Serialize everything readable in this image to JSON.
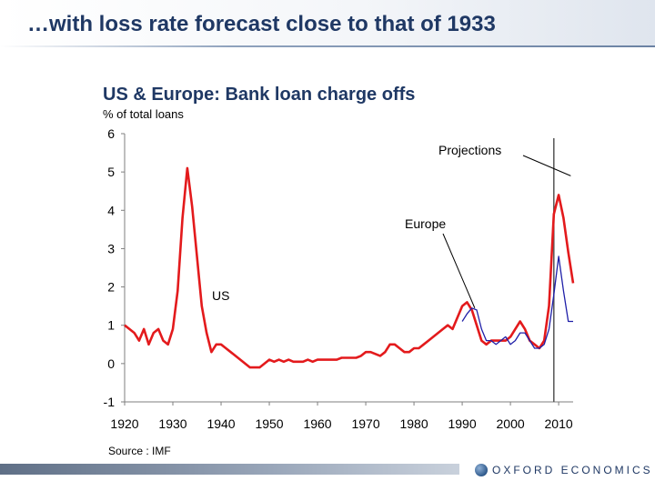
{
  "slide": {
    "title": "…with loss rate forecast close to that of 1933"
  },
  "footer": {
    "logo_text": "OXFORD ECONOMICS"
  },
  "chart_data": {
    "type": "line",
    "title": "US & Europe: Bank loan charge offs",
    "ylabel": "% of total loans",
    "xlabel": "",
    "source": "Source : IMF",
    "xlim": [
      1920,
      2013
    ],
    "ylim": [
      -1,
      6
    ],
    "x_ticks": [
      1920,
      1930,
      1940,
      1950,
      1960,
      1970,
      1980,
      1990,
      2000,
      2010
    ],
    "y_ticks": [
      -1,
      0,
      1,
      2,
      3,
      4,
      5,
      6
    ],
    "projection_start": 2009,
    "annotations": [
      {
        "text": "Projections",
        "points_to": [
          2012.5,
          4.9
        ]
      },
      {
        "text": "Europe",
        "points_to": [
          1992.6,
          1.45
        ]
      },
      {
        "text": "US"
      }
    ],
    "colors": {
      "US": "#e31a1c",
      "Europe": "#1f1fa8"
    },
    "series": [
      {
        "name": "US",
        "points": [
          [
            1920,
            1.0
          ],
          [
            1921,
            0.9
          ],
          [
            1922,
            0.8
          ],
          [
            1923,
            0.6
          ],
          [
            1924,
            0.9
          ],
          [
            1925,
            0.5
          ],
          [
            1926,
            0.8
          ],
          [
            1927,
            0.9
          ],
          [
            1928,
            0.6
          ],
          [
            1929,
            0.5
          ],
          [
            1930,
            0.9
          ],
          [
            1931,
            1.9
          ],
          [
            1932,
            3.8
          ],
          [
            1933,
            5.1
          ],
          [
            1934,
            4.1
          ],
          [
            1935,
            2.8
          ],
          [
            1936,
            1.5
          ],
          [
            1937,
            0.8
          ],
          [
            1938,
            0.3
          ],
          [
            1939,
            0.5
          ],
          [
            1940,
            0.5
          ],
          [
            1941,
            0.4
          ],
          [
            1942,
            0.3
          ],
          [
            1943,
            0.2
          ],
          [
            1944,
            0.1
          ],
          [
            1945,
            0.0
          ],
          [
            1946,
            -0.1
          ],
          [
            1947,
            -0.1
          ],
          [
            1948,
            -0.1
          ],
          [
            1949,
            0.0
          ],
          [
            1950,
            0.1
          ],
          [
            1951,
            0.05
          ],
          [
            1952,
            0.1
          ],
          [
            1953,
            0.05
          ],
          [
            1954,
            0.1
          ],
          [
            1955,
            0.05
          ],
          [
            1956,
            0.05
          ],
          [
            1957,
            0.05
          ],
          [
            1958,
            0.1
          ],
          [
            1959,
            0.05
          ],
          [
            1960,
            0.1
          ],
          [
            1961,
            0.1
          ],
          [
            1962,
            0.1
          ],
          [
            1963,
            0.1
          ],
          [
            1964,
            0.1
          ],
          [
            1965,
            0.15
          ],
          [
            1966,
            0.15
          ],
          [
            1967,
            0.15
          ],
          [
            1968,
            0.15
          ],
          [
            1969,
            0.2
          ],
          [
            1970,
            0.3
          ],
          [
            1971,
            0.3
          ],
          [
            1972,
            0.25
          ],
          [
            1973,
            0.2
          ],
          [
            1974,
            0.3
          ],
          [
            1975,
            0.5
          ],
          [
            1976,
            0.5
          ],
          [
            1977,
            0.4
          ],
          [
            1978,
            0.3
          ],
          [
            1979,
            0.3
          ],
          [
            1980,
            0.4
          ],
          [
            1981,
            0.4
          ],
          [
            1982,
            0.5
          ],
          [
            1983,
            0.6
          ],
          [
            1984,
            0.7
          ],
          [
            1985,
            0.8
          ],
          [
            1986,
            0.9
          ],
          [
            1987,
            1.0
          ],
          [
            1988,
            0.9
          ],
          [
            1989,
            1.2
          ],
          [
            1990,
            1.5
          ],
          [
            1991,
            1.6
          ],
          [
            1992,
            1.4
          ],
          [
            1993,
            1.0
          ],
          [
            1994,
            0.6
          ],
          [
            1995,
            0.5
          ],
          [
            1996,
            0.6
          ],
          [
            1997,
            0.6
          ],
          [
            1998,
            0.6
          ],
          [
            1999,
            0.6
          ],
          [
            2000,
            0.7
          ],
          [
            2001,
            0.9
          ],
          [
            2002,
            1.1
          ],
          [
            2003,
            0.9
          ],
          [
            2004,
            0.6
          ],
          [
            2005,
            0.5
          ],
          [
            2006,
            0.4
          ],
          [
            2007,
            0.6
          ],
          [
            2008,
            1.5
          ],
          [
            2009,
            3.9
          ],
          [
            2010,
            4.4
          ],
          [
            2011,
            3.8
          ],
          [
            2012,
            2.9
          ],
          [
            2013,
            2.1
          ]
        ]
      },
      {
        "name": "Europe",
        "points": [
          [
            1990,
            1.1
          ],
          [
            1991,
            1.3
          ],
          [
            1992,
            1.45
          ],
          [
            1993,
            1.4
          ],
          [
            1994,
            0.9
          ],
          [
            1995,
            0.6
          ],
          [
            1996,
            0.6
          ],
          [
            1997,
            0.5
          ],
          [
            1998,
            0.6
          ],
          [
            1999,
            0.7
          ],
          [
            2000,
            0.5
          ],
          [
            2001,
            0.6
          ],
          [
            2002,
            0.8
          ],
          [
            2003,
            0.8
          ],
          [
            2004,
            0.6
          ],
          [
            2005,
            0.4
          ],
          [
            2006,
            0.4
          ],
          [
            2007,
            0.5
          ],
          [
            2008,
            0.9
          ],
          [
            2009,
            1.8
          ],
          [
            2010,
            2.8
          ],
          [
            2011,
            1.9
          ],
          [
            2012,
            1.1
          ],
          [
            2013,
            1.1
          ]
        ]
      }
    ]
  }
}
